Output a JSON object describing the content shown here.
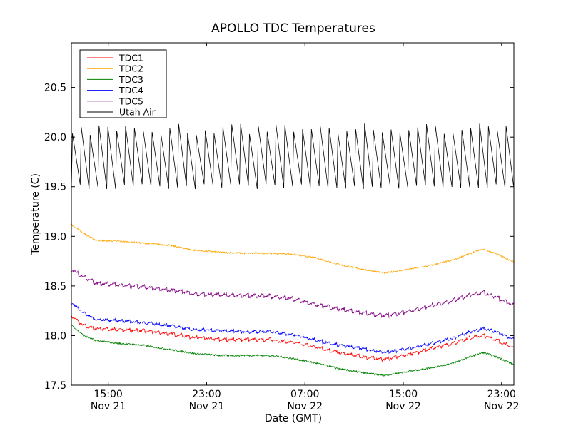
{
  "chart_data": {
    "type": "line",
    "title": "APOLLO TDC Temperatures",
    "xlabel": "Date (GMT)",
    "ylabel": "Temperature (C)",
    "x_unit": "hours since Nov 21 12:00 GMT",
    "xlim": [
      0,
      36
    ],
    "ylim": [
      17.5,
      20.95
    ],
    "grid": false,
    "legend_position": "top-left",
    "x_ticks": [
      {
        "x": 3,
        "time": "15:00",
        "date": "Nov 21"
      },
      {
        "x": 11,
        "time": "23:00",
        "date": "Nov 21"
      },
      {
        "x": 19,
        "time": "07:00",
        "date": "Nov 22"
      },
      {
        "x": 27,
        "time": "15:00",
        "date": "Nov 22"
      },
      {
        "x": 35,
        "time": "23:00",
        "date": "Nov 22"
      }
    ],
    "y_ticks": [
      {
        "value": 17.5,
        "label": "17.5"
      },
      {
        "value": 18.0,
        "label": "18.0"
      },
      {
        "value": 18.5,
        "label": "18.5"
      },
      {
        "value": 19.0,
        "label": "19.0"
      },
      {
        "value": 19.5,
        "label": "19.5"
      },
      {
        "value": 20.0,
        "label": "20.0"
      },
      {
        "value": 20.5,
        "label": "20.5"
      }
    ],
    "series": [
      {
        "name": "TDC1",
        "color": "#ff0000",
        "noise": 0.01,
        "sawtooth": 0.015,
        "points": [
          [
            0,
            18.2
          ],
          [
            1,
            18.1
          ],
          [
            2,
            18.07
          ],
          [
            4,
            18.06
          ],
          [
            6,
            18.05
          ],
          [
            8,
            18.02
          ],
          [
            10,
            17.98
          ],
          [
            12,
            17.96
          ],
          [
            14,
            17.96
          ],
          [
            16,
            17.96
          ],
          [
            18,
            17.93
          ],
          [
            20,
            17.88
          ],
          [
            22,
            17.82
          ],
          [
            24,
            17.78
          ],
          [
            25.5,
            17.76
          ],
          [
            27,
            17.8
          ],
          [
            29,
            17.86
          ],
          [
            31,
            17.92
          ],
          [
            32.5,
            17.98
          ],
          [
            33.5,
            18.0
          ],
          [
            34.5,
            17.96
          ],
          [
            36,
            17.87
          ]
        ]
      },
      {
        "name": "TDC2",
        "color": "#ffa500",
        "noise": 0.008,
        "sawtooth": 0,
        "points": [
          [
            0,
            19.12
          ],
          [
            1,
            19.03
          ],
          [
            2,
            18.96
          ],
          [
            4,
            18.95
          ],
          [
            6,
            18.93
          ],
          [
            8,
            18.91
          ],
          [
            10,
            18.86
          ],
          [
            12,
            18.84
          ],
          [
            14,
            18.83
          ],
          [
            16,
            18.83
          ],
          [
            18,
            18.82
          ],
          [
            20,
            18.78
          ],
          [
            22,
            18.71
          ],
          [
            24,
            18.66
          ],
          [
            25.5,
            18.63
          ],
          [
            27,
            18.66
          ],
          [
            29,
            18.7
          ],
          [
            31,
            18.76
          ],
          [
            32.5,
            18.83
          ],
          [
            33.5,
            18.87
          ],
          [
            34.5,
            18.83
          ],
          [
            36,
            18.74
          ]
        ]
      },
      {
        "name": "TDC3",
        "color": "#008000",
        "noise": 0.009,
        "sawtooth": 0,
        "points": [
          [
            0,
            18.11
          ],
          [
            1,
            18.0
          ],
          [
            2,
            17.95
          ],
          [
            4,
            17.92
          ],
          [
            6,
            17.9
          ],
          [
            8,
            17.86
          ],
          [
            10,
            17.82
          ],
          [
            12,
            17.8
          ],
          [
            14,
            17.8
          ],
          [
            16,
            17.8
          ],
          [
            18,
            17.77
          ],
          [
            20,
            17.72
          ],
          [
            22,
            17.66
          ],
          [
            24,
            17.62
          ],
          [
            25.5,
            17.6
          ],
          [
            27,
            17.63
          ],
          [
            29,
            17.67
          ],
          [
            31,
            17.72
          ],
          [
            32.5,
            17.79
          ],
          [
            33.5,
            17.83
          ],
          [
            34.5,
            17.79
          ],
          [
            36,
            17.71
          ]
        ]
      },
      {
        "name": "TDC4",
        "color": "#0000ff",
        "noise": 0.01,
        "sawtooth": 0.012,
        "points": [
          [
            0,
            18.33
          ],
          [
            1,
            18.23
          ],
          [
            2,
            18.16
          ],
          [
            4,
            18.15
          ],
          [
            6,
            18.13
          ],
          [
            8,
            18.1
          ],
          [
            10,
            18.06
          ],
          [
            12,
            18.05
          ],
          [
            14,
            18.04
          ],
          [
            16,
            18.04
          ],
          [
            18,
            18.01
          ],
          [
            20,
            17.95
          ],
          [
            22,
            17.9
          ],
          [
            24,
            17.86
          ],
          [
            25.5,
            17.83
          ],
          [
            27,
            17.86
          ],
          [
            29,
            17.91
          ],
          [
            31,
            17.97
          ],
          [
            32.5,
            18.04
          ],
          [
            33.5,
            18.07
          ],
          [
            34.5,
            18.04
          ],
          [
            36,
            17.96
          ]
        ]
      },
      {
        "name": "TDC5",
        "color": "#800080",
        "noise": 0.01,
        "sawtooth": 0.02,
        "points": [
          [
            0,
            18.67
          ],
          [
            1,
            18.59
          ],
          [
            2,
            18.53
          ],
          [
            4,
            18.51
          ],
          [
            6,
            18.49
          ],
          [
            8,
            18.46
          ],
          [
            10,
            18.42
          ],
          [
            12,
            18.41
          ],
          [
            14,
            18.4
          ],
          [
            16,
            18.4
          ],
          [
            18,
            18.37
          ],
          [
            20,
            18.31
          ],
          [
            22,
            18.26
          ],
          [
            24,
            18.22
          ],
          [
            25.5,
            18.2
          ],
          [
            27,
            18.23
          ],
          [
            29,
            18.29
          ],
          [
            31,
            18.35
          ],
          [
            32.5,
            18.41
          ],
          [
            33.5,
            18.43
          ],
          [
            34.5,
            18.39
          ],
          [
            36,
            18.3
          ]
        ]
      },
      {
        "name": "Utah Air",
        "color": "#000000",
        "noise": 0,
        "sawtooth": 0,
        "cycle_hours": 0.72,
        "low": 19.5,
        "high": 20.08,
        "points": []
      }
    ]
  }
}
